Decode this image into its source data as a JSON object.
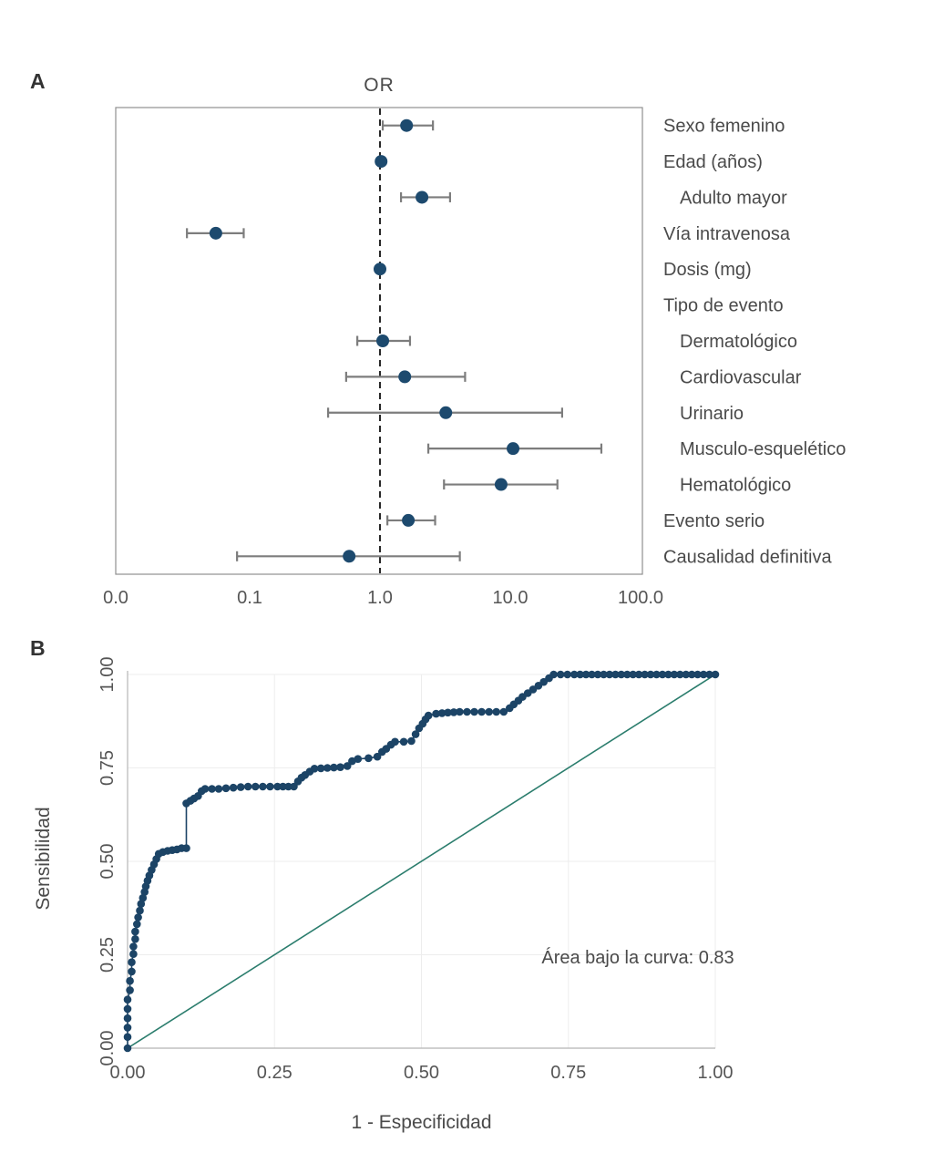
{
  "colors": {
    "marker_navy": "#1d4a6e",
    "ci_gray": "#7d7d7d",
    "frame_gray": "#8f8f8f",
    "curve_navy": "#1c4466",
    "diagonal_teal": "#2b7d6d",
    "text_dark": "#4a4a4a",
    "tick_text": "#555555",
    "grid_gray": "#ededed",
    "axis_gray": "#c0c0c0"
  },
  "panelA": {
    "label": "A",
    "title": "OR"
  },
  "panelB": {
    "label": "B",
    "xlabel": "1 - Especificidad",
    "ylabel": "Sensibilidad",
    "annotation": "Área bajo la curva: 0.83"
  },
  "chart_data": [
    {
      "type": "scatter",
      "subtype": "forest-plot",
      "title": "OR",
      "xscale": "log",
      "x_ticks": [
        0,
        0.1,
        1,
        10,
        100
      ],
      "x_tick_labels": [
        "0.0",
        "0.1",
        "1.0",
        "10.0",
        "100.0"
      ],
      "reference_line": 1.0,
      "rows": [
        {
          "label": "Sexo femenino",
          "indent": false,
          "or": 1.6,
          "lo": 1.05,
          "hi": 2.55
        },
        {
          "label": "Edad (años)",
          "indent": false,
          "or": 1.02,
          "lo": 0.99,
          "hi": 1.05
        },
        {
          "label": "Adulto mayor",
          "indent": true,
          "or": 2.1,
          "lo": 1.45,
          "hi": 3.45
        },
        {
          "label": "Vía intravenosa",
          "indent": false,
          "or": 0.055,
          "lo": 0.033,
          "hi": 0.09
        },
        {
          "label": "Dosis (mg)",
          "indent": false,
          "or": 1.0,
          "lo": 0.98,
          "hi": 1.03
        },
        {
          "label": "Tipo de evento",
          "indent": false,
          "or": null,
          "lo": null,
          "hi": null
        },
        {
          "label": "Dermatológico",
          "indent": true,
          "or": 1.05,
          "lo": 0.67,
          "hi": 1.7
        },
        {
          "label": "Cardiovascular",
          "indent": true,
          "or": 1.55,
          "lo": 0.55,
          "hi": 4.5
        },
        {
          "label": "Urinario",
          "indent": true,
          "or": 3.2,
          "lo": 0.4,
          "hi": 25.0
        },
        {
          "label": "Musculo-esquelético",
          "indent": true,
          "or": 10.5,
          "lo": 2.35,
          "hi": 50.0
        },
        {
          "label": "Hematológico",
          "indent": true,
          "or": 8.5,
          "lo": 3.1,
          "hi": 23.0
        },
        {
          "label": "Evento serio",
          "indent": false,
          "or": 1.65,
          "lo": 1.14,
          "hi": 2.65
        },
        {
          "label": "Causalidad definitiva",
          "indent": false,
          "or": 0.58,
          "lo": 0.08,
          "hi": 4.1
        }
      ]
    },
    {
      "type": "line",
      "subtype": "roc-curve",
      "xlabel": "1 - Especificidad",
      "ylabel": "Sensibilidad",
      "annotation": "Área bajo la curva: 0.83",
      "auc": 0.83,
      "xlim": [
        0,
        1
      ],
      "ylim": [
        0,
        1
      ],
      "grid": true,
      "diagonal": true,
      "x_ticks": [
        0,
        0.25,
        0.5,
        0.75,
        1
      ],
      "x_tick_labels": [
        "0.00",
        "0.25",
        "0.50",
        "0.75",
        "1.00"
      ],
      "y_ticks": [
        0,
        0.25,
        0.5,
        0.75,
        1
      ],
      "y_tick_labels": [
        "0.00",
        "0.25",
        "0.50",
        "0.75",
        "1.00"
      ],
      "points": [
        [
          0.0,
          0.0
        ],
        [
          0.0,
          0.03
        ],
        [
          0.0,
          0.055
        ],
        [
          0.0,
          0.08
        ],
        [
          0.0,
          0.105
        ],
        [
          0.0,
          0.13
        ],
        [
          0.004,
          0.155
        ],
        [
          0.004,
          0.18
        ],
        [
          0.007,
          0.205
        ],
        [
          0.007,
          0.23
        ],
        [
          0.01,
          0.252
        ],
        [
          0.01,
          0.272
        ],
        [
          0.013,
          0.292
        ],
        [
          0.013,
          0.312
        ],
        [
          0.016,
          0.332
        ],
        [
          0.018,
          0.35
        ],
        [
          0.021,
          0.368
        ],
        [
          0.023,
          0.386
        ],
        [
          0.026,
          0.402
        ],
        [
          0.029,
          0.418
        ],
        [
          0.031,
          0.433
        ],
        [
          0.034,
          0.448
        ],
        [
          0.037,
          0.462
        ],
        [
          0.041,
          0.477
        ],
        [
          0.045,
          0.492
        ],
        [
          0.049,
          0.506
        ],
        [
          0.053,
          0.52
        ],
        [
          0.06,
          0.525
        ],
        [
          0.068,
          0.528
        ],
        [
          0.076,
          0.53
        ],
        [
          0.084,
          0.532
        ],
        [
          0.092,
          0.535
        ],
        [
          0.1,
          0.535
        ],
        [
          0.1,
          0.655
        ],
        [
          0.107,
          0.662
        ],
        [
          0.113,
          0.668
        ],
        [
          0.12,
          0.675
        ],
        [
          0.126,
          0.688
        ],
        [
          0.132,
          0.694
        ],
        [
          0.155,
          0.694
        ],
        [
          0.18,
          0.697
        ],
        [
          0.205,
          0.7
        ],
        [
          0.23,
          0.7
        ],
        [
          0.255,
          0.7
        ],
        [
          0.283,
          0.7
        ],
        [
          0.29,
          0.714
        ],
        [
          0.296,
          0.724
        ],
        [
          0.302,
          0.731
        ],
        [
          0.31,
          0.74
        ],
        [
          0.318,
          0.748
        ],
        [
          0.34,
          0.75
        ],
        [
          0.362,
          0.752
        ],
        [
          0.374,
          0.755
        ],
        [
          0.382,
          0.768
        ],
        [
          0.392,
          0.774
        ],
        [
          0.41,
          0.776
        ],
        [
          0.425,
          0.78
        ],
        [
          0.433,
          0.793
        ],
        [
          0.44,
          0.801
        ],
        [
          0.448,
          0.812
        ],
        [
          0.455,
          0.82
        ],
        [
          0.47,
          0.82
        ],
        [
          0.483,
          0.822
        ],
        [
          0.49,
          0.84
        ],
        [
          0.496,
          0.856
        ],
        [
          0.502,
          0.868
        ],
        [
          0.507,
          0.88
        ],
        [
          0.512,
          0.89
        ],
        [
          0.525,
          0.895
        ],
        [
          0.545,
          0.898
        ],
        [
          0.565,
          0.9
        ],
        [
          0.59,
          0.9
        ],
        [
          0.615,
          0.9
        ],
        [
          0.64,
          0.9
        ],
        [
          0.65,
          0.91
        ],
        [
          0.657,
          0.92
        ],
        [
          0.665,
          0.93
        ],
        [
          0.672,
          0.94
        ],
        [
          0.681,
          0.95
        ],
        [
          0.69,
          0.96
        ],
        [
          0.699,
          0.97
        ],
        [
          0.708,
          0.98
        ],
        [
          0.717,
          0.99
        ],
        [
          0.725,
          1.0
        ],
        [
          0.76,
          1.0
        ],
        [
          0.8,
          1.0
        ],
        [
          0.84,
          1.0
        ],
        [
          0.88,
          1.0
        ],
        [
          0.92,
          1.0
        ],
        [
          0.96,
          1.0
        ],
        [
          1.0,
          1.0
        ]
      ]
    }
  ]
}
